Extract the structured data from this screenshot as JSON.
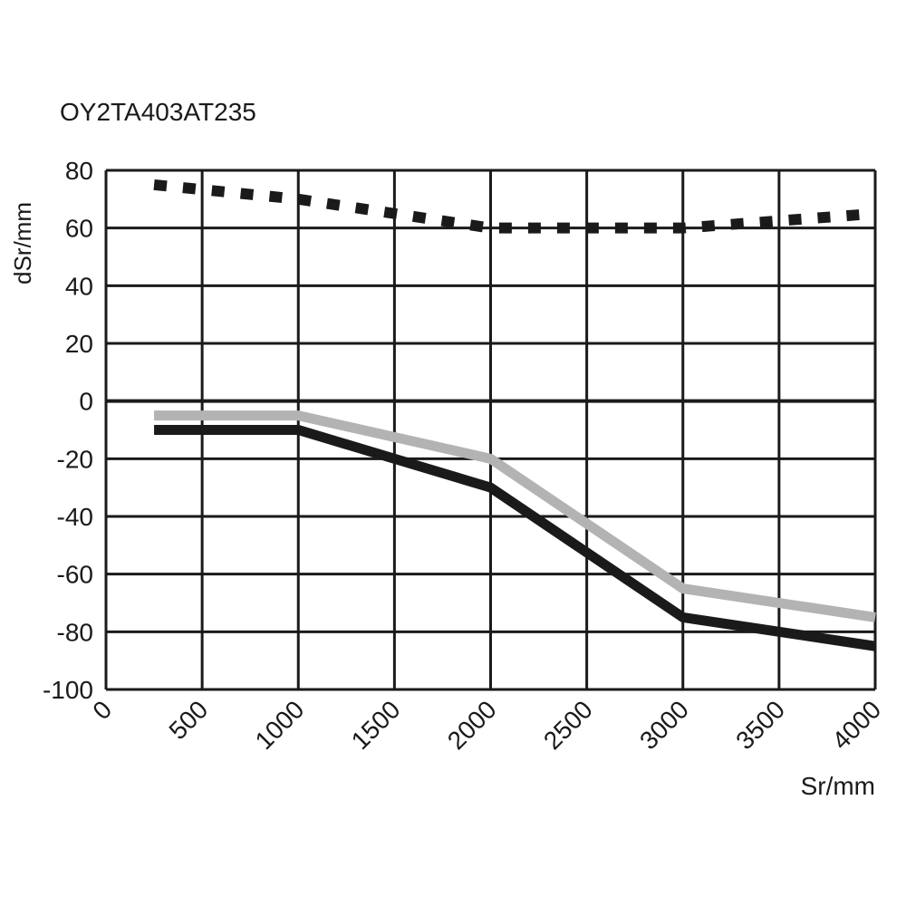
{
  "chart_data": {
    "type": "line",
    "title": "OY2TA403AT235",
    "xlabel": "Sr/mm",
    "ylabel": "dSr/mm",
    "xlim": [
      0,
      4000
    ],
    "ylim": [
      -100,
      80
    ],
    "xticks": [
      0,
      500,
      1000,
      1500,
      2000,
      2500,
      3000,
      3500,
      4000
    ],
    "yticks": [
      80,
      60,
      40,
      20,
      0,
      -20,
      -40,
      -60,
      -80,
      -100
    ],
    "grid": true,
    "series": [
      {
        "name": "dashed",
        "color": "#1a1a1a",
        "style": "dashed",
        "x": [
          250,
          1000,
          1500,
          2000,
          2500,
          3000,
          3500,
          4000
        ],
        "y": [
          75,
          70,
          65,
          60,
          60,
          60,
          62.5,
          65
        ]
      },
      {
        "name": "gray",
        "color": "#b3b3b3",
        "style": "solid",
        "x": [
          250,
          1000,
          2000,
          3000,
          4000
        ],
        "y": [
          -5,
          -5,
          -20,
          -65,
          -75
        ]
      },
      {
        "name": "black",
        "color": "#1a1a1a",
        "style": "solid",
        "x": [
          250,
          1000,
          2000,
          3000,
          3500,
          4000
        ],
        "y": [
          -10,
          -10,
          -30,
          -75,
          -80,
          -85
        ]
      }
    ]
  }
}
